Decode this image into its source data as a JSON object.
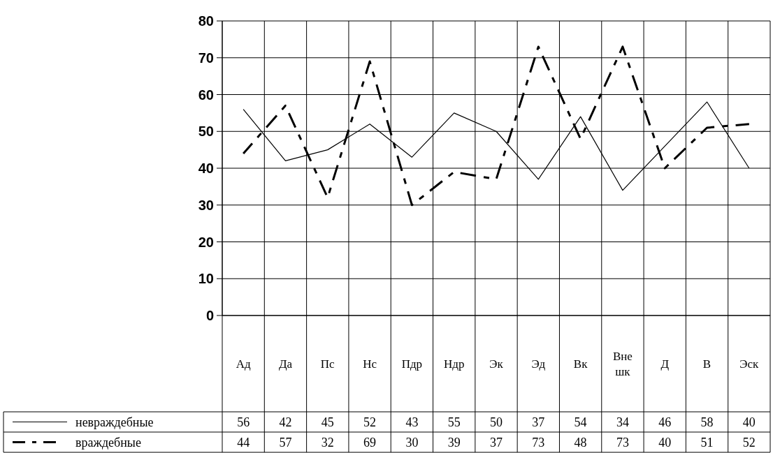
{
  "chart_data": {
    "type": "line",
    "categories": [
      "Ад",
      "Да",
      "Пс",
      "Нс",
      "Пдр",
      "Ндр",
      "Эк",
      "Эд",
      "Вк",
      "Вне шк",
      "Д",
      "В",
      "Эск"
    ],
    "series": [
      {
        "name": "невраждебные",
        "color": "#000000",
        "line_style": "solid",
        "values": [
          56,
          42,
          45,
          52,
          43,
          55,
          50,
          37,
          54,
          34,
          46,
          58,
          40
        ]
      },
      {
        "name": "враждебные",
        "color": "#000000",
        "line_style": "dashed",
        "values": [
          44,
          57,
          32,
          69,
          30,
          39,
          37,
          73,
          48,
          73,
          40,
          51,
          52
        ]
      }
    ],
    "ylim": [
      0,
      80
    ],
    "yticks": [
      0,
      10,
      20,
      30,
      40,
      50,
      60,
      70,
      80
    ],
    "grid": true,
    "data_labels": true,
    "legend": "bottom left",
    "marker": "none"
  }
}
